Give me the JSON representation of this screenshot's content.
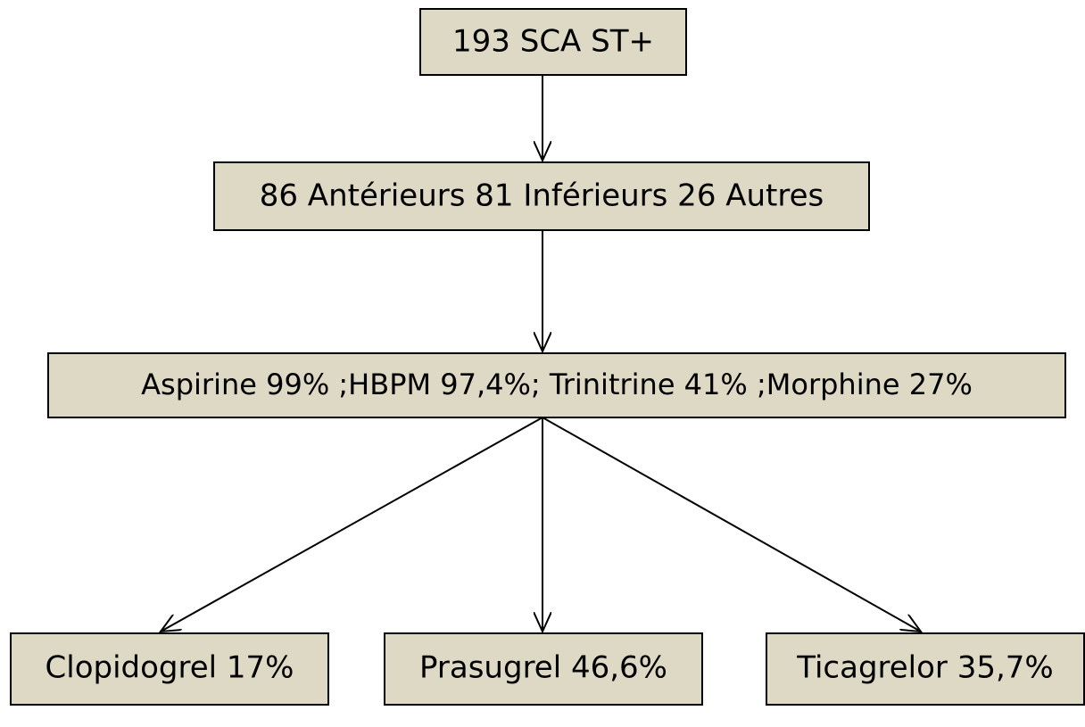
{
  "nodes": [
    {
      "label": "193 SCA ST+"
    },
    {
      "label": "86 Antérieurs 81 Inférieurs 26 Autres"
    },
    {
      "label": "Aspirine 99% ;HBPM 97,4%; Trinitrine 41% ;Morphine 27%"
    },
    {
      "label": "Clopidogrel 17%"
    },
    {
      "label": "Prasugrel 46,6%"
    },
    {
      "label": "Ticagrelor 35,7%"
    }
  ]
}
